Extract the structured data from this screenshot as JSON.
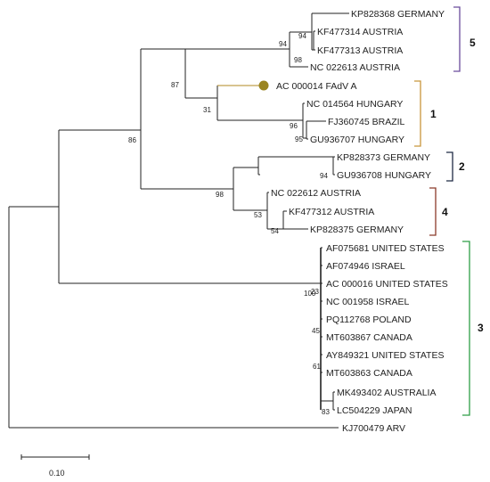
{
  "taxa": [
    "KP828368 GERMANY",
    "KF477314 AUSTRIA",
    "KF477313 AUSTRIA",
    "NC 022613 AUSTRIA",
    "AC 000014 FAdV A",
    "NC 014564 HUNGARY",
    "FJ360745 BRAZIL",
    "GU936707 HUNGARY",
    "KP828373 GERMANY",
    "GU936708 HUNGARY",
    "NC 022612 AUSTRIA",
    "KF477312 AUSTRIA",
    "KP828375 GERMANY",
    "AF075681 UNITED STATES",
    "AF074946 ISRAEL",
    "AC 000016 UNITED STATES",
    "NC 001958 ISRAEL",
    "PQ112768 POLAND",
    "MT603867 CANADA",
    "AY849321 UNITED STATES",
    "MT603863 CANADA",
    "MK493402 AUSTRALIA",
    "LC504229 JAPAN",
    "KJ700479 ARV"
  ],
  "bootstrap": [
    "94",
    "94",
    "98",
    "87",
    "31",
    "96",
    "95",
    "86",
    "94",
    "98",
    "53",
    "54",
    "100",
    "23",
    "45",
    "61",
    "83"
  ],
  "clades": [
    {
      "label": "5",
      "color": "#6a4c9c"
    },
    {
      "label": "1",
      "color": "#c8963c"
    },
    {
      "label": "2",
      "color": "#1f2a44"
    },
    {
      "label": "4",
      "color": "#8b3a2a"
    },
    {
      "label": "3",
      "color": "#2e9e46"
    }
  ],
  "marker_color": "#9a8420",
  "scale_label": "0.10"
}
